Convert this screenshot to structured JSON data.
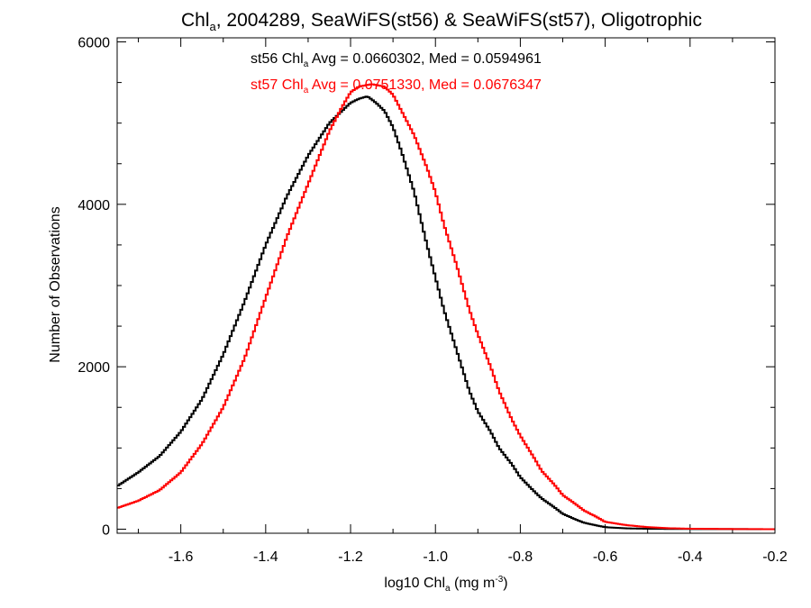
{
  "chart_data": {
    "type": "line",
    "title": {
      "prefix": "Chl",
      "subscript": "a",
      "rest": ", 2004289, SeaWiFS(st56) & SeaWiFS(st57), Oligotrophic"
    },
    "xlabel": {
      "prefix": "log10 Chl",
      "subscript": "a",
      "middle": " (mg m",
      "superscript": "-3",
      "suffix": ")"
    },
    "ylabel": "Number of Observations",
    "xlim": [
      -1.75,
      -0.2
    ],
    "ylim": [
      -50,
      6050
    ],
    "x_ticks": [
      -1.6,
      -1.4,
      -1.2,
      -1.0,
      -0.8,
      -0.6,
      -0.4,
      -0.2
    ],
    "x_tick_labels": [
      "-1.6",
      "-1.4",
      "-1.2",
      "-1.0",
      "-0.8",
      "-0.6",
      "-0.4",
      "-0.2"
    ],
    "y_ticks": [
      0,
      2000,
      4000,
      6000
    ],
    "y_tick_labels": [
      "0",
      "2000",
      "4000",
      "6000"
    ],
    "grid": false,
    "legend": "top-center",
    "annotations": [
      {
        "prefix": "st56 Chl",
        "subscript": "a",
        "rest": " Avg = 0.0660302, Med = 0.0594961",
        "color": "#000000"
      },
      {
        "prefix": "st57 Chl",
        "subscript": "a",
        "rest": " Avg = 0.0751330, Med = 0.0676347",
        "color": "#ff0000"
      }
    ],
    "series": [
      {
        "color": "#000000",
        "x": [
          -1.75,
          -1.7,
          -1.65,
          -1.6,
          -1.55,
          -1.5,
          -1.45,
          -1.4,
          -1.35,
          -1.3,
          -1.25,
          -1.22,
          -1.2,
          -1.18,
          -1.16,
          -1.14,
          -1.12,
          -1.1,
          -1.08,
          -1.05,
          -1.02,
          -1.0,
          -0.98,
          -0.95,
          -0.92,
          -0.9,
          -0.87,
          -0.85,
          -0.82,
          -0.8,
          -0.77,
          -0.75,
          -0.72,
          -0.7,
          -0.67,
          -0.65,
          -0.62,
          -0.6,
          -0.55,
          -0.5,
          -0.45,
          -0.4,
          -0.3,
          -0.2
        ],
        "y": [
          530,
          700,
          900,
          1200,
          1600,
          2150,
          2800,
          3500,
          4100,
          4600,
          5000,
          5150,
          5250,
          5300,
          5330,
          5250,
          5150,
          4950,
          4650,
          4150,
          3500,
          3100,
          2700,
          2200,
          1700,
          1450,
          1200,
          1000,
          800,
          640,
          480,
          380,
          270,
          190,
          120,
          80,
          45,
          25,
          10,
          5,
          3,
          2,
          1,
          0
        ]
      },
      {
        "color": "#ff0000",
        "x": [
          -1.75,
          -1.7,
          -1.65,
          -1.6,
          -1.55,
          -1.5,
          -1.45,
          -1.4,
          -1.35,
          -1.3,
          -1.25,
          -1.22,
          -1.2,
          -1.18,
          -1.15,
          -1.12,
          -1.1,
          -1.08,
          -1.05,
          -1.02,
          -1.0,
          -0.98,
          -0.95,
          -0.92,
          -0.9,
          -0.87,
          -0.85,
          -0.82,
          -0.8,
          -0.77,
          -0.75,
          -0.72,
          -0.7,
          -0.67,
          -0.65,
          -0.62,
          -0.6,
          -0.55,
          -0.5,
          -0.45,
          -0.4,
          -0.3,
          -0.2
        ],
        "y": [
          260,
          350,
          480,
          700,
          1050,
          1500,
          2100,
          2850,
          3600,
          4250,
          4900,
          5200,
          5380,
          5450,
          5480,
          5450,
          5350,
          5150,
          4850,
          4450,
          4150,
          3750,
          3250,
          2700,
          2400,
          2000,
          1700,
          1350,
          1150,
          900,
          720,
          550,
          420,
          310,
          230,
          150,
          90,
          50,
          25,
          12,
          6,
          2,
          0
        ]
      }
    ]
  }
}
